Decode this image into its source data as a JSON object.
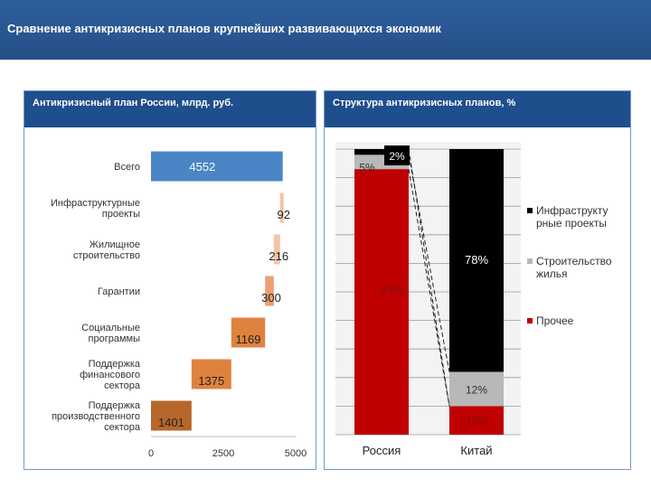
{
  "header": {
    "title": "Сравнение антикризисных планов крупнейших развивающихся экономик"
  },
  "colors": {
    "header_bg": "#2f5f9e",
    "panel_head": "#1f4e8c",
    "bar_total": "#4a86c5",
    "bar_light": "#f4c3a7",
    "bar_mid": "#eba071",
    "bar_orange": "#e0823f",
    "bar_brown": "#b7672b",
    "infra": "#000000",
    "housing": "#b8b8b8",
    "other": "#c00000"
  },
  "chart_data": [
    {
      "type": "bar",
      "orientation": "horizontal",
      "title": "Антикризисный план России, млрд. руб.",
      "categories": [
        "Всего",
        "Инфраструктурные проекты",
        "Жилищное строительство",
        "Гарантии",
        "Социальные программы",
        "Поддержка финансового сектора",
        "Поддержка производственного сектора"
      ],
      "category_lines": [
        [
          "Всего"
        ],
        [
          "Инфраструктурные",
          "проекты"
        ],
        [
          "Жилищное",
          "строительство"
        ],
        [
          "Гарантии"
        ],
        [
          "Социальные",
          "программы"
        ],
        [
          "Поддержка",
          "финансового",
          "сектора"
        ],
        [
          "Поддержка",
          "производственного",
          "сектора"
        ]
      ],
      "series": [
        {
          "name": "Начало",
          "values": [
            0,
            4460,
            4244,
            3944,
            2775,
            1400,
            0
          ]
        },
        {
          "name": "Значение",
          "values": [
            4552,
            92,
            216,
            300,
            1169,
            1375,
            1401
          ]
        }
      ],
      "data_labels": [
        "4552",
        "92",
        "216",
        "300",
        "1169",
        "1375",
        "1401"
      ],
      "xlim": [
        0,
        5000
      ],
      "xticks": [
        "0",
        "2500",
        "5000"
      ],
      "grid": false
    },
    {
      "type": "bar",
      "stacked": true,
      "percent": true,
      "title": "Структура антикризисных планов, %",
      "categories": [
        "Россия",
        "Китай"
      ],
      "series": [
        {
          "name": "Прочее",
          "values": [
            93,
            10
          ],
          "labels": [
            "93%",
            "10%"
          ]
        },
        {
          "name": "Строительство жилья",
          "values": [
            5,
            12
          ],
          "labels": [
            "5%",
            "12%"
          ]
        },
        {
          "name": "Инфраструктурные проекты",
          "values": [
            2,
            78
          ],
          "labels": [
            "2%",
            "78%"
          ]
        }
      ],
      "legend": {
        "position": "right",
        "entries": [
          {
            "lines": [
              "Инфраструкту",
              "рные проекты"
            ]
          },
          {
            "lines": [
              "Строительство",
              "жилья"
            ]
          },
          {
            "lines": [
              "Прочее"
            ]
          }
        ]
      },
      "ylim": [
        0,
        100
      ]
    }
  ]
}
